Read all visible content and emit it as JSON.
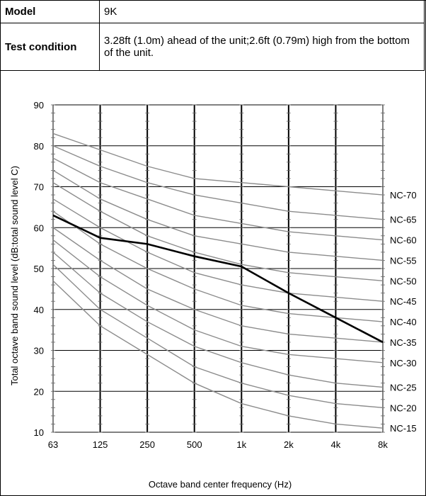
{
  "info": {
    "model_label": "Model",
    "model_value": "9K",
    "condition_label": "Test condition",
    "condition_value": "3.28ft (1.0m) ahead of  the unit;2.6ft (0.79m) high from the bottom of the unit."
  },
  "chart_data": {
    "type": "line",
    "xlabel": "Octave band center frequency (Hz)",
    "ylabel": "Total octave band sound level (dB:total sound level C)",
    "x": [
      "63",
      "125",
      "250",
      "500",
      "1k",
      "2k",
      "4k",
      "8k"
    ],
    "ylim": [
      10,
      90
    ],
    "yticks": [
      "10",
      "20",
      "30",
      "40",
      "50",
      "60",
      "70",
      "80",
      "90"
    ],
    "grid": true,
    "reference_curves": [
      {
        "name": "NC-70",
        "values": [
          83,
          79,
          75,
          72,
          71,
          70,
          69,
          68
        ]
      },
      {
        "name": "NC-65",
        "values": [
          80,
          75,
          71,
          68,
          66,
          64,
          63,
          62
        ]
      },
      {
        "name": "NC-60",
        "values": [
          77,
          71,
          67,
          63,
          61,
          59,
          58,
          57
        ]
      },
      {
        "name": "NC-55",
        "values": [
          74,
          67,
          62,
          58,
          56,
          54,
          53,
          52
        ]
      },
      {
        "name": "NC-50",
        "values": [
          71,
          64,
          58,
          54,
          51,
          49,
          48,
          47
        ]
      },
      {
        "name": "NC-45",
        "values": [
          67,
          60,
          54,
          49,
          46,
          44,
          43,
          42
        ]
      },
      {
        "name": "NC-40",
        "values": [
          64,
          56,
          50,
          45,
          41,
          39,
          38,
          37
        ]
      },
      {
        "name": "NC-35",
        "values": [
          60,
          52,
          45,
          40,
          36,
          34,
          33,
          32
        ]
      },
      {
        "name": "NC-30",
        "values": [
          57,
          48,
          41,
          35,
          31,
          29,
          28,
          27
        ]
      },
      {
        "name": "NC-25",
        "values": [
          54,
          44,
          37,
          31,
          27,
          24,
          22,
          21
        ]
      },
      {
        "name": "NC-20",
        "values": [
          51,
          40,
          33,
          26,
          22,
          19,
          17,
          16
        ]
      },
      {
        "name": "NC-15",
        "values": [
          47,
          36,
          29,
          22,
          17,
          14,
          12,
          11
        ]
      }
    ],
    "series": [
      {
        "values": [
          63,
          57.5,
          56,
          53,
          50.5,
          44,
          38,
          32
        ]
      }
    ],
    "colors": {
      "reference": "#8c8c8c",
      "measured": "#000000",
      "grid": "#000000"
    }
  }
}
